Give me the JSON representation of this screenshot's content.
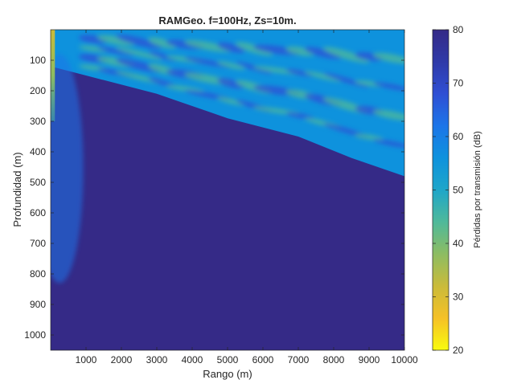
{
  "chart_data": {
    "type": "heatmap",
    "title": "RAMGeo. f=100Hz, Zs=10m.",
    "xlabel": "Rango (m)",
    "ylabel": "Profundidad (m)",
    "xlim": [
      0,
      10000
    ],
    "ylim": [
      0,
      1050
    ],
    "y_reversed": true,
    "x_ticks": [
      1000,
      2000,
      3000,
      4000,
      5000,
      6000,
      7000,
      8000,
      9000,
      10000
    ],
    "y_ticks": [
      100,
      200,
      300,
      400,
      500,
      600,
      700,
      800,
      900,
      1000
    ],
    "colorbar": {
      "label": "Pérdidas por transmisión (dB)",
      "range": [
        20,
        80
      ],
      "ticks": [
        20,
        30,
        40,
        50,
        60,
        70,
        80
      ],
      "colormap": "parula",
      "colors": [
        "#f9fb0e",
        "#f5c127",
        "#cabb3a",
        "#8dbc62",
        "#4fb99a",
        "#1fa6c9",
        "#0e92dd",
        "#1c75e8",
        "#2f4fd4",
        "#2f3aa8",
        "#352a87"
      ]
    },
    "features": [
      {
        "name": "sound-channel-boundary",
        "value_db": 80,
        "depth_at_range": [
          [
            0,
            120
          ],
          [
            1000,
            150
          ],
          [
            3000,
            210
          ],
          [
            5000,
            290
          ],
          [
            7000,
            350
          ],
          [
            8500,
            420
          ],
          [
            10000,
            480
          ]
        ]
      },
      {
        "name": "channel-fill",
        "value_db": 58,
        "depth_range": [
          0,
          480
        ],
        "x_range": [
          0,
          10000
        ]
      },
      {
        "name": "near-source-beam",
        "value_db": 62,
        "depth_range": [
          80,
          830
        ],
        "x_range": [
          0,
          900
        ]
      },
      {
        "name": "source-column",
        "value_db": 35,
        "depth_range": [
          0,
          300
        ],
        "x_range": [
          0,
          120
        ]
      }
    ]
  }
}
